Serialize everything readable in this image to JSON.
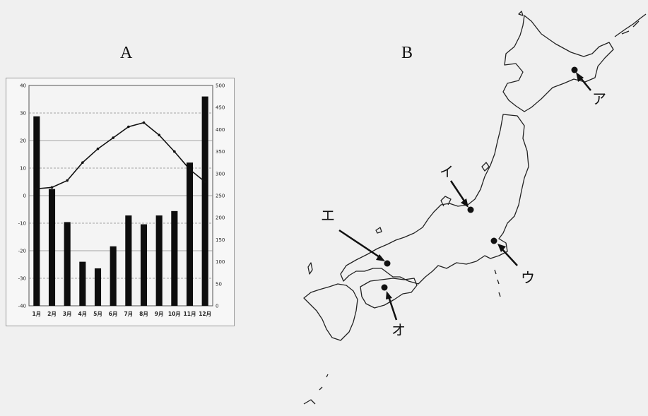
{
  "panels": {
    "a_label": "A",
    "b_label": "B"
  },
  "chart_data": {
    "type": "bar+line",
    "categories": [
      "1月",
      "2月",
      "3月",
      "4月",
      "5月",
      "6月",
      "7月",
      "8月",
      "9月",
      "10月",
      "11月",
      "12月"
    ],
    "series": [
      {
        "type": "bar",
        "axis": "right",
        "values": [
          430,
          265,
          190,
          100,
          85,
          135,
          205,
          185,
          205,
          215,
          325,
          475
        ]
      },
      {
        "type": "line",
        "axis": "left",
        "values": [
          2.5,
          3,
          5.5,
          12,
          17,
          21,
          25,
          26.5,
          22,
          16,
          9.5,
          5
        ]
      }
    ],
    "left_axis": {
      "min": -40,
      "max": 40,
      "ticks": [
        "40",
        "30",
        "20",
        "10",
        "0",
        "-10",
        "-20",
        "-30",
        "-40"
      ]
    },
    "right_axis": {
      "min": 0,
      "max": 500,
      "ticks": [
        "500",
        "450",
        "400",
        "350",
        "300",
        "250",
        "200",
        "150",
        "100",
        "50",
        "0"
      ]
    },
    "grid": true
  },
  "map": {
    "markers": [
      {
        "id": "a",
        "label": "ア"
      },
      {
        "id": "i",
        "label": "イ"
      },
      {
        "id": "u",
        "label": "ウ"
      },
      {
        "id": "e",
        "label": "エ"
      },
      {
        "id": "o",
        "label": "オ"
      }
    ]
  }
}
